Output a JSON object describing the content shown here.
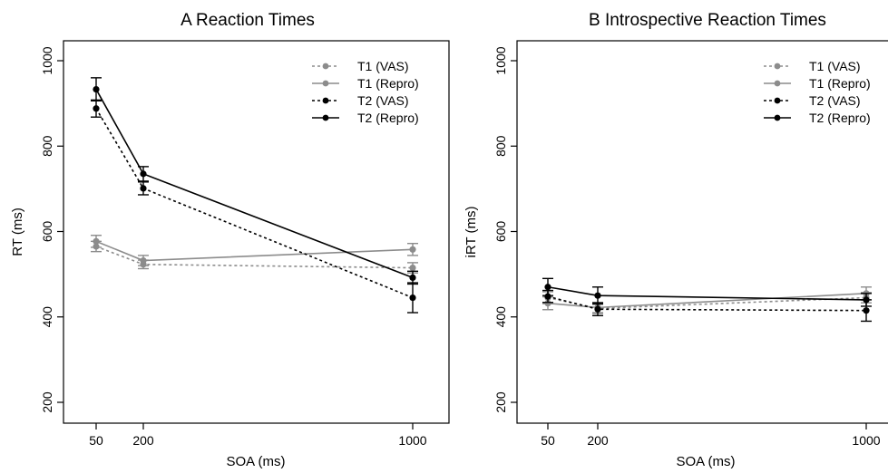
{
  "colors": {
    "gray": "#8c8c8c",
    "black": "#000000",
    "background": "#ffffff"
  },
  "chart_data": [
    {
      "type": "line",
      "title": "A  Reaction Times",
      "xlabel": "SOA (ms)",
      "ylabel": "RT (ms)",
      "x": [
        50,
        200,
        1000
      ],
      "xticks": [
        "50",
        "200",
        "1000"
      ],
      "yticks": [
        "200",
        "400",
        "600",
        "800",
        "1000"
      ],
      "ylim": [
        200,
        1000
      ],
      "legend_position": "top-right",
      "series": [
        {
          "name": "T1 (VAS)",
          "color": "gray",
          "dashed": true,
          "values": [
            565,
            523,
            515
          ],
          "errors": [
            12,
            10,
            12
          ]
        },
        {
          "name": "T1 (Repro)",
          "color": "gray",
          "dashed": false,
          "values": [
            577,
            532,
            558
          ],
          "errors": [
            14,
            12,
            14
          ]
        },
        {
          "name": "T2 (VAS)",
          "color": "black",
          "dashed": true,
          "values": [
            888,
            701,
            445
          ],
          "errors": [
            20,
            15,
            35
          ]
        },
        {
          "name": "T2 (Repro)",
          "color": "black",
          "dashed": false,
          "values": [
            933,
            735,
            492
          ],
          "errors": [
            27,
            17,
            15
          ]
        }
      ]
    },
    {
      "type": "line",
      "title": "B  Introspective Reaction Times",
      "xlabel": "SOA (ms)",
      "ylabel": "iRT (ms)",
      "x": [
        50,
        200,
        1000
      ],
      "xticks": [
        "50",
        "200",
        "1000"
      ],
      "yticks": [
        "200",
        "400",
        "600",
        "800",
        "1000"
      ],
      "ylim": [
        200,
        1000
      ],
      "legend_position": "top-right",
      "series": [
        {
          "name": "T1 (VAS)",
          "color": "gray",
          "dashed": true,
          "values": [
            445,
            420,
            445
          ],
          "errors": [
            14,
            12,
            12
          ]
        },
        {
          "name": "T1 (Repro)",
          "color": "gray",
          "dashed": false,
          "values": [
            432,
            422,
            455
          ],
          "errors": [
            15,
            12,
            15
          ]
        },
        {
          "name": "T2 (VAS)",
          "color": "black",
          "dashed": true,
          "values": [
            448,
            418,
            415
          ],
          "errors": [
            14,
            15,
            25
          ]
        },
        {
          "name": "T2 (Repro)",
          "color": "black",
          "dashed": false,
          "values": [
            470,
            450,
            440
          ],
          "errors": [
            20,
            20,
            15
          ]
        }
      ]
    }
  ]
}
